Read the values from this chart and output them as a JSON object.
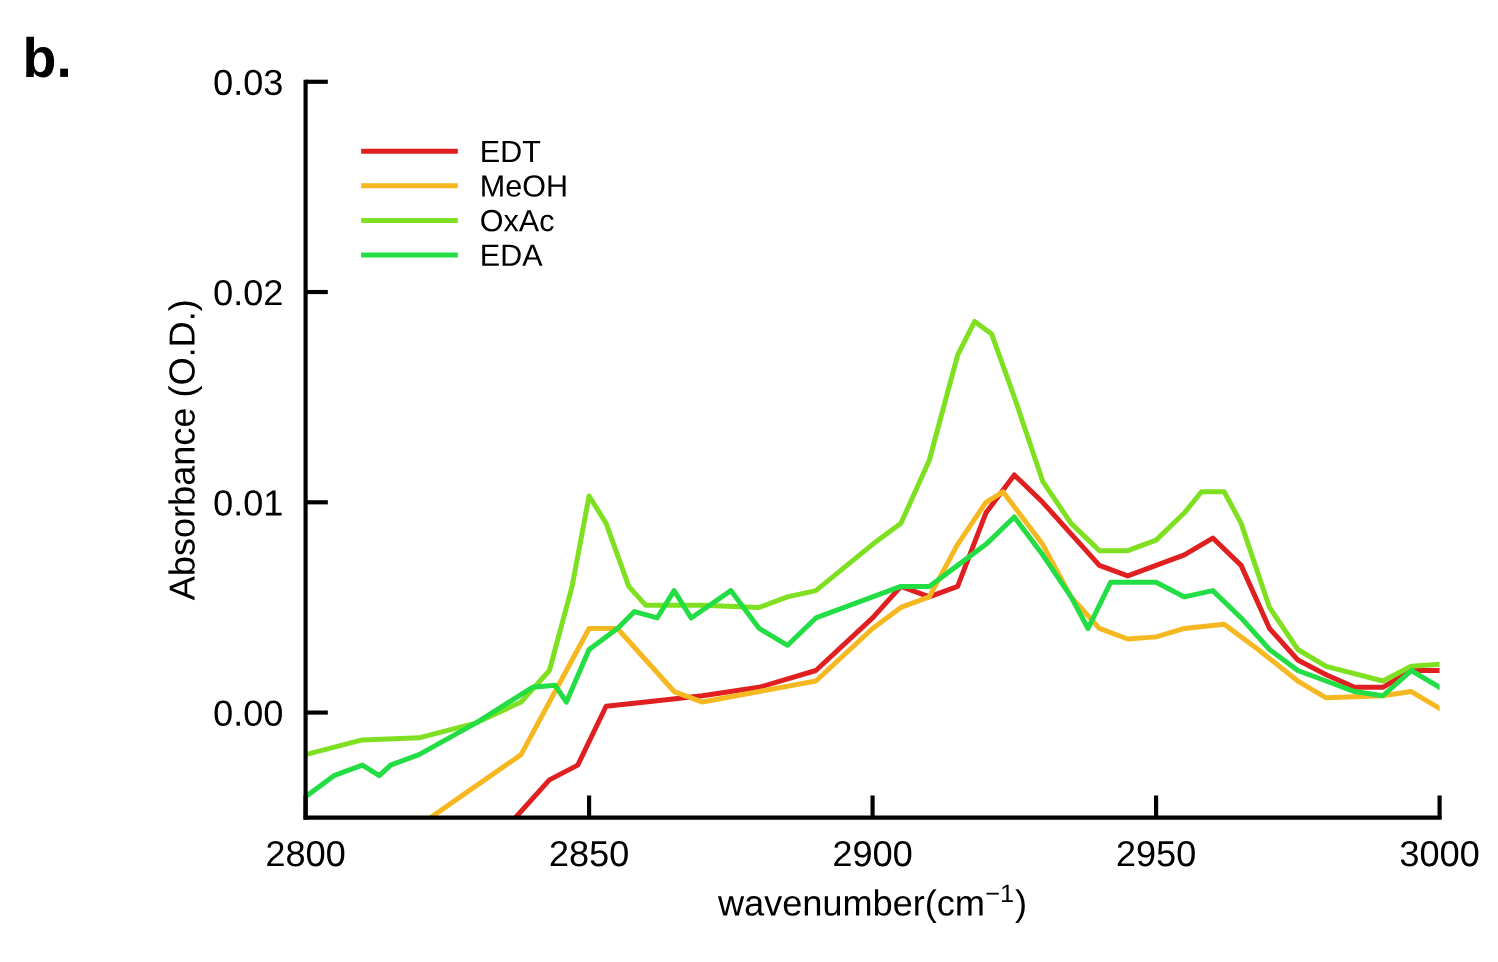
{
  "chart_data": {
    "type": "line",
    "xlabel": "wavenumber(cm$^{−1}$)",
    "ylabel": "Absorbance (O.D.)",
    "annotations": [
      "b."
    ],
    "xlim": [
      2800,
      3000
    ],
    "xticks": [
      2800,
      2850,
      2900,
      2950,
      3000
    ],
    "ylim": [
      -0.005,
      0.03
    ],
    "yticks": [
      {
        "value": 0,
        "label": "0.00"
      },
      {
        "value": 0.01,
        "label": "0.01"
      },
      {
        "value": 0.02,
        "label": "0.02"
      },
      {
        "value": 0.03,
        "label": "0.03"
      }
    ],
    "grid": false,
    "legend": "top left",
    "marker": "none",
    "line_style": "solid",
    "series": [
      {
        "name": "EDT",
        "color": "#e02020",
        "x": [
          2837,
          2843,
          2848,
          2853,
          2860,
          2870,
          2880,
          2890,
          2900,
          2905,
          2910,
          2915,
          2920,
          2925,
          2930,
          2935,
          2940,
          2945,
          2950,
          2955,
          2960,
          2965,
          2970,
          2975,
          2980,
          2985,
          2990,
          2995,
          3000
        ],
        "values": [
          -0.005,
          -0.0032,
          -0.0025,
          0.0003,
          0.0005,
          0.0008,
          0.0012,
          0.002,
          0.0045,
          0.006,
          0.0055,
          0.006,
          0.0095,
          0.0113,
          0.01,
          0.0085,
          0.007,
          0.0065,
          0.007,
          0.0075,
          0.0083,
          0.007,
          0.004,
          0.0025,
          0.0018,
          0.0012,
          0.0012,
          0.002,
          0.002
        ]
      },
      {
        "name": "MeOH",
        "color": "#f5b820",
        "x": [
          2822,
          2830,
          2838,
          2845,
          2850,
          2855,
          2860,
          2865,
          2870,
          2880,
          2890,
          2900,
          2905,
          2910,
          2915,
          2920,
          2923,
          2930,
          2935,
          2940,
          2945,
          2950,
          2955,
          2962,
          2968,
          2975,
          2980,
          2990,
          2995,
          3000
        ],
        "values": [
          -0.005,
          -0.0035,
          -0.002,
          0.0015,
          0.004,
          0.004,
          0.0025,
          0.001,
          0.0005,
          0.001,
          0.0015,
          0.004,
          0.005,
          0.0055,
          0.008,
          0.01,
          0.0105,
          0.008,
          0.0055,
          0.004,
          0.0035,
          0.0036,
          0.004,
          0.0042,
          0.003,
          0.0015,
          0.0007,
          0.0008,
          0.001,
          0.0002
        ]
      },
      {
        "name": "OxAc",
        "color": "#7ee020",
        "x": [
          2800,
          2810,
          2820,
          2830,
          2838,
          2843,
          2847,
          2850,
          2853,
          2857,
          2860,
          2870,
          2880,
          2885,
          2890,
          2900,
          2905,
          2910,
          2915,
          2918,
          2921,
          2925,
          2930,
          2935,
          2940,
          2945,
          2950,
          2955,
          2958,
          2962,
          2965,
          2970,
          2975,
          2980,
          2990,
          2995,
          3000
        ],
        "values": [
          -0.002,
          -0.0013,
          -0.0012,
          -0.0005,
          0.0005,
          0.002,
          0.006,
          0.0103,
          0.009,
          0.006,
          0.0051,
          0.0051,
          0.005,
          0.0055,
          0.0058,
          0.008,
          0.009,
          0.012,
          0.017,
          0.0186,
          0.018,
          0.015,
          0.011,
          0.009,
          0.0077,
          0.0077,
          0.0082,
          0.0095,
          0.0105,
          0.0105,
          0.009,
          0.005,
          0.003,
          0.0022,
          0.0015,
          0.0022,
          0.0023
        ]
      },
      {
        "name": "EDA",
        "color": "#22dd44",
        "x": [
          2800,
          2805,
          2810,
          2813,
          2815,
          2820,
          2830,
          2840,
          2844,
          2846,
          2850,
          2855,
          2858,
          2862,
          2865,
          2868,
          2875,
          2880,
          2885,
          2890,
          2900,
          2905,
          2910,
          2915,
          2920,
          2925,
          2930,
          2935,
          2938,
          2942,
          2950,
          2955,
          2960,
          2965,
          2970,
          2975,
          2980,
          2985,
          2990,
          2995,
          3000
        ],
        "values": [
          -0.004,
          -0.003,
          -0.0025,
          -0.003,
          -0.0025,
          -0.002,
          -0.0005,
          0.0012,
          0.0013,
          0.0005,
          0.003,
          0.004,
          0.0048,
          0.0045,
          0.0058,
          0.0045,
          0.0058,
          0.004,
          0.0032,
          0.0045,
          0.0055,
          0.006,
          0.006,
          0.007,
          0.008,
          0.0093,
          0.0075,
          0.0055,
          0.004,
          0.0062,
          0.0062,
          0.0055,
          0.0058,
          0.0045,
          0.003,
          0.002,
          0.0015,
          0.001,
          0.0008,
          0.002,
          0.0012
        ]
      }
    ]
  }
}
